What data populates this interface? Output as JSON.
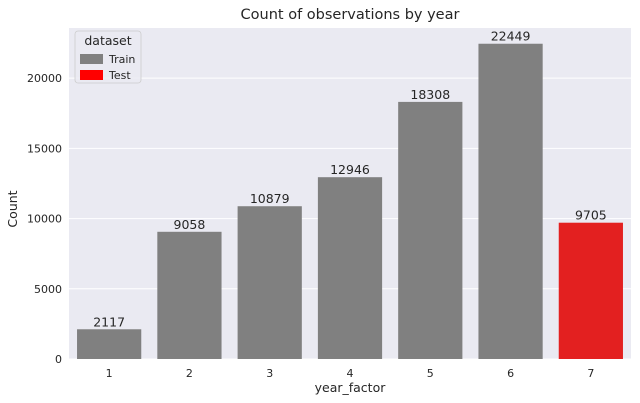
{
  "chart_data": {
    "type": "bar",
    "title": "Count of observations by year",
    "xlabel": "year_factor",
    "ylabel": "Count",
    "categories": [
      "1",
      "2",
      "3",
      "4",
      "5",
      "6",
      "7"
    ],
    "values": [
      2117,
      9058,
      10879,
      12946,
      18308,
      22449,
      9705
    ],
    "dataset": [
      "Train",
      "Train",
      "Train",
      "Train",
      "Train",
      "Train",
      "Test"
    ],
    "ylim": [
      0,
      23570
    ],
    "yticks": [
      0,
      5000,
      10000,
      15000,
      20000
    ],
    "grid": true,
    "legend": {
      "title": "dataset",
      "placement": "top-left",
      "entries": [
        {
          "name": "Train",
          "color": "#808080"
        },
        {
          "name": "Test",
          "color": "#ff0000"
        }
      ]
    },
    "colors": {
      "background": "#eaeaf2",
      "grid": "#ffffff",
      "Train": "#808080",
      "Test": "#e32020"
    }
  }
}
